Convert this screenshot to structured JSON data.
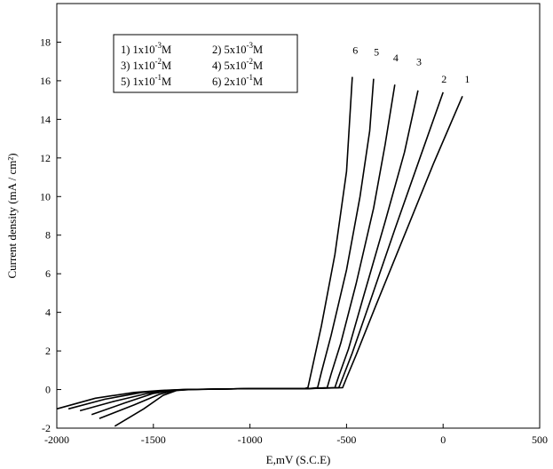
{
  "chart_data": {
    "type": "line",
    "title": "",
    "xlabel": "E,mV (S.C.E)",
    "ylabel": "Current density (mA / cm²)",
    "xlim": [
      -2000,
      500
    ],
    "ylim": [
      -2,
      20
    ],
    "x_ticks": [
      "-2000",
      "-1500",
      "-1000",
      "-500",
      "0",
      "500"
    ],
    "y_ticks": [
      "-2",
      "0",
      "2",
      "4",
      "6",
      "8",
      "10",
      "12",
      "14",
      "16",
      "18"
    ],
    "grid": false,
    "legend_position": "top-left",
    "legend": [
      {
        "prefix": "1) 1x10",
        "exp": "-3",
        "suffix": "M"
      },
      {
        "prefix": "2) 5x10",
        "exp": "-3",
        "suffix": "M"
      },
      {
        "prefix": "3) 1x10",
        "exp": "-2",
        "suffix": "M"
      },
      {
        "prefix": "4) 5x10",
        "exp": "-2",
        "suffix": "M"
      },
      {
        "prefix": "5) 1x10",
        "exp": "-1",
        "suffix": "M"
      },
      {
        "prefix": "6) 2x10",
        "exp": "-1",
        "suffix": "M"
      }
    ],
    "series": [
      {
        "name": "1",
        "x": [
          -1700,
          -1550,
          -1450,
          -1380,
          -1300,
          -1000,
          -700,
          -520,
          -500,
          -450,
          -350,
          -200,
          -50,
          100
        ],
        "y": [
          -1.9,
          -1.0,
          -0.3,
          -0.05,
          0.0,
          0.05,
          0.05,
          0.1,
          0.6,
          1.8,
          4.3,
          8.0,
          11.7,
          15.2
        ]
      },
      {
        "name": "2",
        "x": [
          -1780,
          -1600,
          -1470,
          -1390,
          -1310,
          -1000,
          -700,
          -540,
          -520,
          -470,
          -380,
          -250,
          -120,
          0
        ],
        "y": [
          -1.5,
          -0.8,
          -0.25,
          -0.05,
          0.0,
          0.05,
          0.05,
          0.1,
          0.6,
          1.9,
          4.5,
          8.3,
          12.0,
          15.4
        ]
      },
      {
        "name": "3",
        "x": [
          -1820,
          -1650,
          -1500,
          -1400,
          -1320,
          -1000,
          -700,
          -560,
          -540,
          -490,
          -410,
          -300,
          -200,
          -130
        ],
        "y": [
          -1.3,
          -0.7,
          -0.2,
          -0.05,
          0.0,
          0.05,
          0.05,
          0.1,
          0.7,
          2.1,
          4.9,
          8.7,
          12.3,
          15.5
        ]
      },
      {
        "name": "4",
        "x": [
          -1880,
          -1700,
          -1530,
          -1420,
          -1330,
          -1000,
          -700,
          -600,
          -580,
          -530,
          -450,
          -360,
          -300,
          -250
        ],
        "y": [
          -1.1,
          -0.6,
          -0.2,
          -0.05,
          0.0,
          0.05,
          0.05,
          0.1,
          0.8,
          2.4,
          5.5,
          9.4,
          12.7,
          15.8
        ]
      },
      {
        "name": "5",
        "x": [
          -1940,
          -1750,
          -1560,
          -1440,
          -1340,
          -1000,
          -700,
          -650,
          -630,
          -580,
          -500,
          -430,
          -380,
          -360
        ],
        "y": [
          -1.0,
          -0.5,
          -0.15,
          -0.05,
          0.0,
          0.05,
          0.05,
          0.1,
          0.9,
          2.8,
          6.2,
          10.0,
          13.4,
          16.1
        ]
      },
      {
        "name": "6",
        "x": [
          -2000,
          -1800,
          -1600,
          -1460,
          -1350,
          -1000,
          -720,
          -700,
          -680,
          -630,
          -560,
          -500,
          -470
        ],
        "y": [
          -1.0,
          -0.45,
          -0.15,
          -0.05,
          0.0,
          0.05,
          0.05,
          0.1,
          1.0,
          3.3,
          7.0,
          11.3,
          16.2
        ]
      }
    ],
    "curve_labels": [
      {
        "text": "6",
        "x": -455,
        "y": 17.4
      },
      {
        "text": "5",
        "x": -345,
        "y": 17.3
      },
      {
        "text": "4",
        "x": -245,
        "y": 17.0
      },
      {
        "text": "3",
        "x": -125,
        "y": 16.8
      },
      {
        "text": "2",
        "x": 5,
        "y": 15.9
      },
      {
        "text": "1",
        "x": 125,
        "y": 15.9
      }
    ]
  }
}
